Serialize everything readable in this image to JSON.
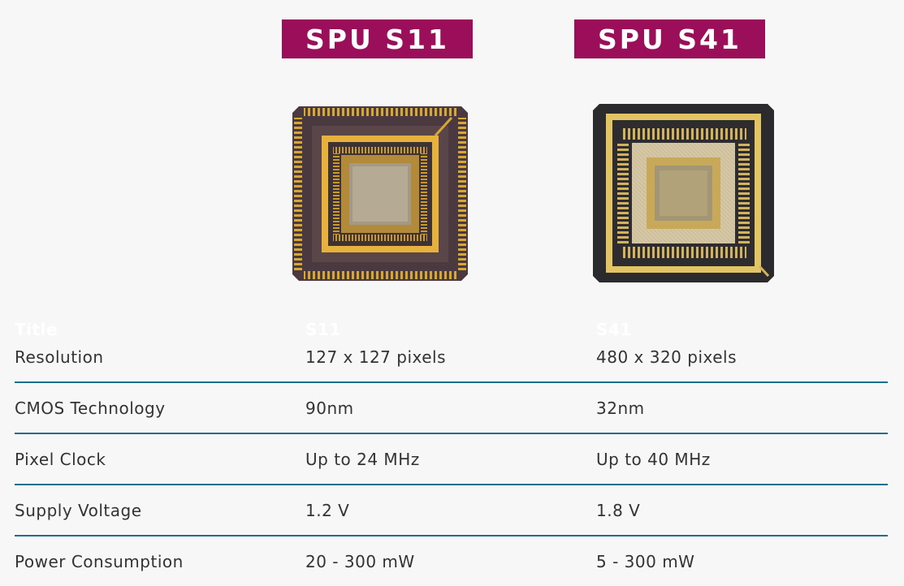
{
  "products": [
    {
      "badge": "SPU S11",
      "image_alt": "SPU S11 chip"
    },
    {
      "badge": "SPU S41",
      "image_alt": "SPU S41 chip"
    }
  ],
  "table": {
    "headers": [
      "Title",
      "S11",
      "S41"
    ],
    "rows": [
      {
        "label": "Resolution",
        "s11": "127 x 127 pixels",
        "s41": "480 x 320 pixels"
      },
      {
        "label": "CMOS Technology",
        "s11": "90nm",
        "s41": "32nm"
      },
      {
        "label": "Pixel Clock",
        "s11": "Up to 24 MHz",
        "s41": "Up to 40 MHz"
      },
      {
        "label": "Supply Voltage",
        "s11": "1.2 V",
        "s41": "1.8 V"
      },
      {
        "label": "Power Consumption",
        "s11": "20 - 300 mW",
        "s41": "5 - 300 mW"
      }
    ]
  },
  "colors": {
    "badge": "#9b0e5a",
    "divider": "#1c6f8c",
    "background": "#f7f7f7"
  }
}
